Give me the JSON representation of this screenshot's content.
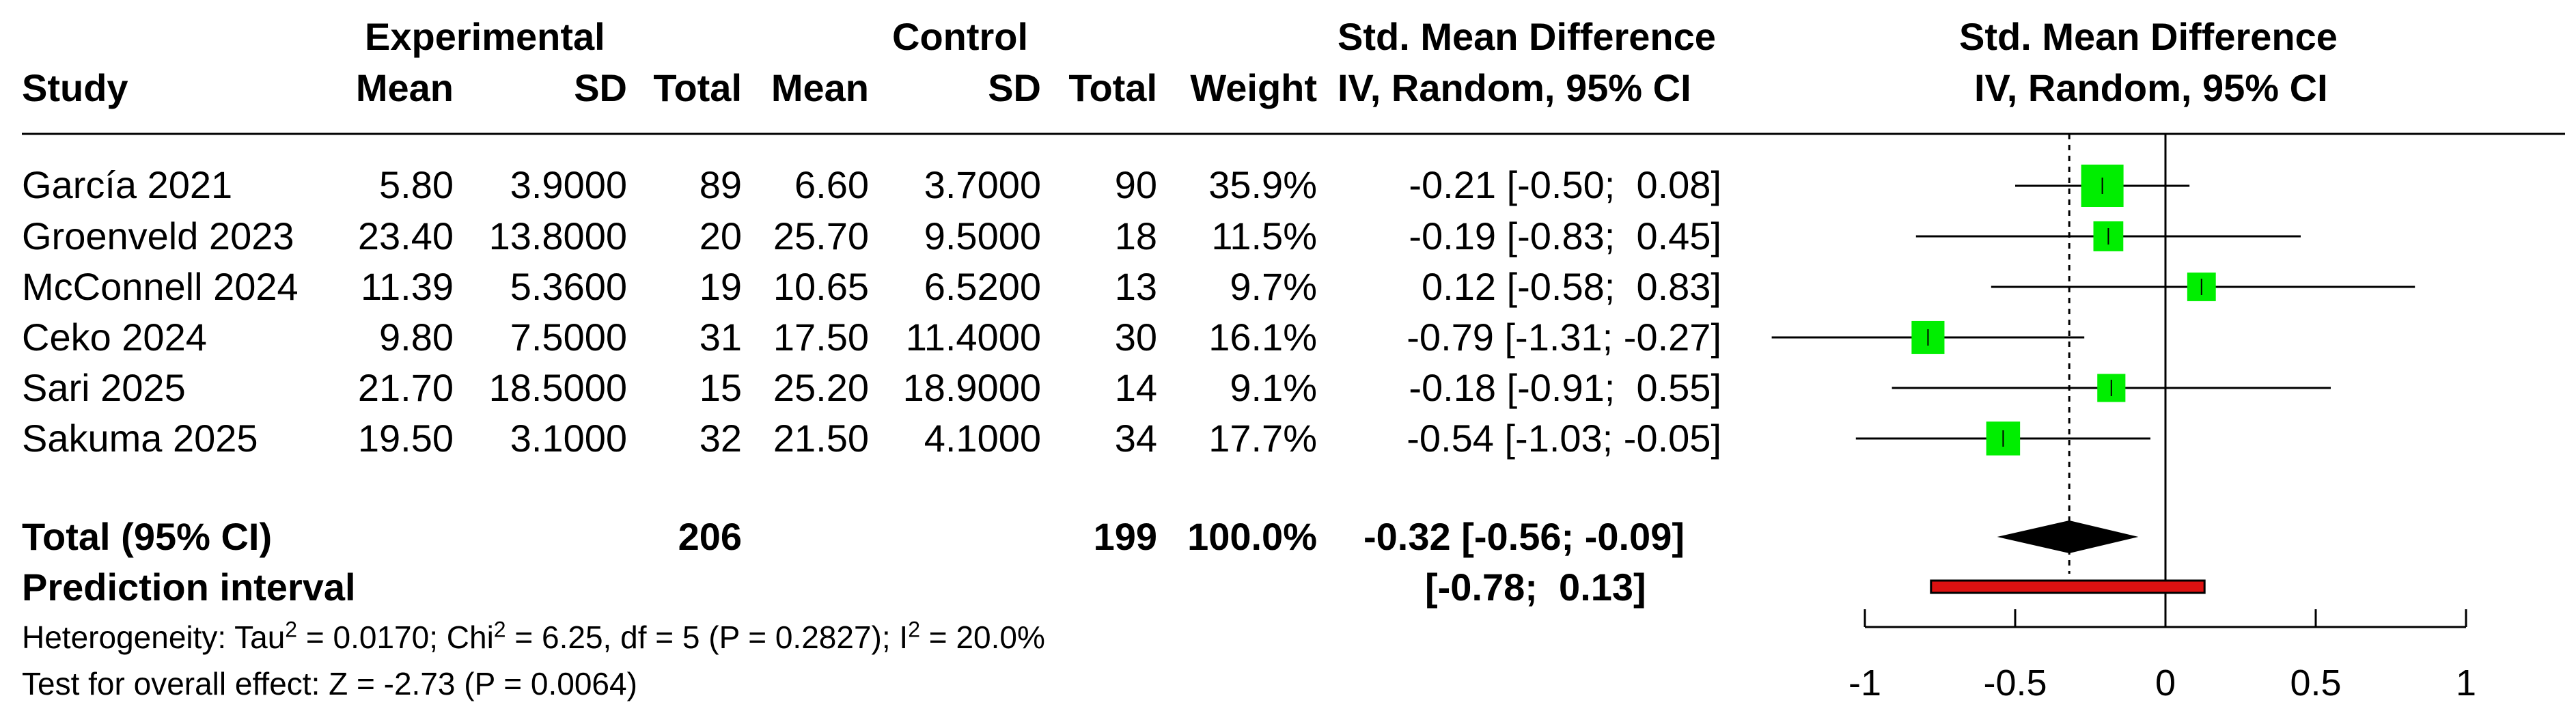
{
  "headers": {
    "study": "Study",
    "experimental": "Experimental",
    "control": "Control",
    "mean": "Mean",
    "sd": "SD",
    "total": "Total",
    "weight": "Weight",
    "smd_line1": "Std. Mean Difference",
    "smd_line2": "IV, Random, 95% CI",
    "plot_line1": "Std. Mean Difference",
    "plot_line2": "IV, Random, 95% CI"
  },
  "studies": [
    {
      "name": "García 2021",
      "e_mean": "5.80",
      "e_sd": "3.9000",
      "e_total": "89",
      "c_mean": "6.60",
      "c_sd": "3.7000",
      "c_total": "90",
      "weight": "35.9%",
      "ci_text": "-0.21 [-0.50;  0.08]"
    },
    {
      "name": "Groenveld 2023",
      "e_mean": "23.40",
      "e_sd": "13.8000",
      "e_total": "20",
      "c_mean": "25.70",
      "c_sd": "9.5000",
      "c_total": "18",
      "weight": "11.5%",
      "ci_text": "-0.19 [-0.83;  0.45]"
    },
    {
      "name": "McConnell 2024",
      "e_mean": "11.39",
      "e_sd": "5.3600",
      "e_total": "19",
      "c_mean": "10.65",
      "c_sd": "6.5200",
      "c_total": "13",
      "weight": "9.7%",
      "ci_text": "0.12 [-0.58;  0.83]"
    },
    {
      "name": "Ceko 2024",
      "e_mean": "9.80",
      "e_sd": "7.5000",
      "e_total": "31",
      "c_mean": "17.50",
      "c_sd": "11.4000",
      "c_total": "30",
      "weight": "16.1%",
      "ci_text": "-0.79 [-1.31; -0.27]"
    },
    {
      "name": "Sari 2025",
      "e_mean": "21.70",
      "e_sd": "18.5000",
      "e_total": "15",
      "c_mean": "25.20",
      "c_sd": "18.9000",
      "c_total": "14",
      "weight": "9.1%",
      "ci_text": "-0.18 [-0.91;  0.55]"
    },
    {
      "name": "Sakuma 2025",
      "e_mean": "19.50",
      "e_sd": "3.1000",
      "e_total": "32",
      "c_mean": "21.50",
      "c_sd": "4.1000",
      "c_total": "34",
      "weight": "17.7%",
      "ci_text": "-0.54 [-1.03; -0.05]"
    }
  ],
  "total": {
    "label": "Total (95% CI)",
    "e_total": "206",
    "c_total": "199",
    "weight": "100.0%",
    "ci_text": "-0.32 [-0.56; -0.09]"
  },
  "prediction": {
    "label": "Prediction interval",
    "ci_text": "[-0.78;  0.13]"
  },
  "heterogeneity": {
    "prefix": "Heterogeneity: Tau",
    "tau2": "= 0.0170; Chi",
    "chi2": "= 6.25, df = 5 (P = 0.2827); I",
    "i2": "= 20.0%",
    "sup": "2"
  },
  "overall_effect": "Test for overall effect: Z = -2.73 (P = 0.0064)",
  "colors": {
    "square": "#00ee00",
    "diamond": "#000000",
    "prediction_bar": "#dd1111"
  },
  "chart_data": {
    "type": "forest",
    "xlim": [
      -1,
      1
    ],
    "xticks": [
      -1,
      -0.5,
      0,
      0.5,
      1
    ],
    "xtick_labels": [
      "-1",
      "-0.5",
      "0",
      "0.5",
      "1"
    ],
    "reference_line": 0,
    "pooled_line": -0.32,
    "studies": [
      {
        "smd": -0.21,
        "lower": -0.5,
        "upper": 0.08,
        "weight": 35.9
      },
      {
        "smd": -0.19,
        "lower": -0.83,
        "upper": 0.45,
        "weight": 11.5
      },
      {
        "smd": 0.12,
        "lower": -0.58,
        "upper": 0.83,
        "weight": 9.7
      },
      {
        "smd": -0.79,
        "lower": -1.31,
        "upper": -0.27,
        "weight": 16.1
      },
      {
        "smd": -0.18,
        "lower": -0.91,
        "upper": 0.55,
        "weight": 9.1
      },
      {
        "smd": -0.54,
        "lower": -1.03,
        "upper": -0.05,
        "weight": 17.7
      }
    ],
    "pooled": {
      "smd": -0.32,
      "lower": -0.56,
      "upper": -0.09
    },
    "prediction_interval": {
      "lower": -0.78,
      "upper": 0.13
    }
  }
}
